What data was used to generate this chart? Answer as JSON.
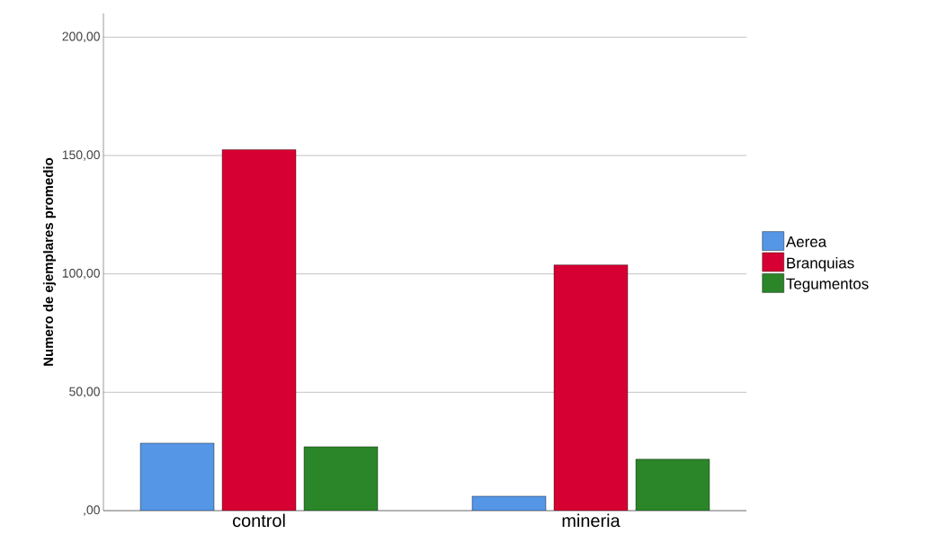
{
  "chart_data": {
    "type": "bar",
    "ylabel": "Numero de ejemplares promedio",
    "categories": [
      "control",
      "mineria"
    ],
    "series": [
      {
        "name": "Aerea",
        "color": "#5596e6",
        "values": [
          28.5,
          6.1
        ]
      },
      {
        "name": "Branquias",
        "color": "#d60032",
        "values": [
          152.5,
          103.8
        ]
      },
      {
        "name": "Tegumentos",
        "color": "#2b8529",
        "values": [
          27.0,
          21.7
        ]
      }
    ],
    "ylim": [
      0,
      210
    ],
    "yticks": [
      {
        "value": 0,
        "label": ",00"
      },
      {
        "value": 50,
        "label": "50,00"
      },
      {
        "value": 100,
        "label": "100,00"
      },
      {
        "value": 150,
        "label": "150,00"
      },
      {
        "value": 200,
        "label": "200,00"
      }
    ],
    "grid": "y",
    "legend": "right"
  }
}
